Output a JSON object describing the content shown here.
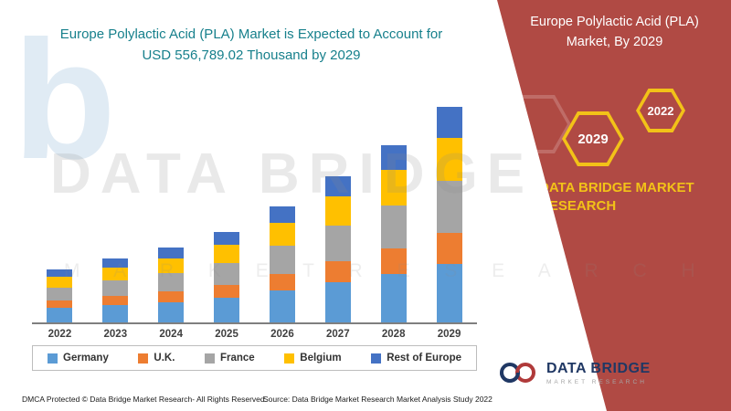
{
  "header": {
    "title_line1": "Europe Polylactic Acid (PLA) Market is Expected to Account for",
    "title_line2": "USD 556,789.02 Thousand by 2029"
  },
  "panel": {
    "title": "Europe Polylactic Acid (PLA) Market, By 2029",
    "hex_small_label": "2022",
    "hex_large_label": "2029",
    "brand_text": "DATA BRIDGE MARKET RESEARCH",
    "bg_color": "#b04a44",
    "accent_yellow": "#f2c218"
  },
  "chart_data": {
    "type": "bar",
    "stacked": true,
    "title": "Europe Polylactic Acid (PLA) Market is Expected to Account for USD 556,789.02 Thousand by 2029",
    "unit": "USD Thousand",
    "categories": [
      "2022",
      "2023",
      "2024",
      "2025",
      "2026",
      "2027",
      "2028",
      "2029"
    ],
    "series": [
      {
        "name": "Germany",
        "color": "#5B9BD5",
        "values": [
          38000,
          45000,
          53000,
          64000,
          82000,
          104000,
          126000,
          152000
        ]
      },
      {
        "name": "U.K.",
        "color": "#ED7D31",
        "values": [
          20000,
          24000,
          28000,
          34000,
          43000,
          55000,
          66000,
          80000
        ]
      },
      {
        "name": "France",
        "color": "#A5A5A5",
        "values": [
          34000,
          40000,
          47000,
          57000,
          73000,
          92000,
          112000,
          134000
        ]
      },
      {
        "name": "Belgium",
        "color": "#FFC000",
        "values": [
          28000,
          33000,
          39000,
          47000,
          60000,
          76000,
          92000,
          110789.02
        ]
      },
      {
        "name": "Rest of Europe",
        "color": "#4472C4",
        "values": [
          20000,
          23000,
          28000,
          33000,
          42000,
          53000,
          64000,
          80000
        ]
      }
    ],
    "ylim": [
      0,
      600000
    ],
    "grid": false,
    "legend_position": "bottom",
    "xlabel": "",
    "ylabel": ""
  },
  "watermark": {
    "letter": "b",
    "line1": "DATA BRIDGE",
    "line2": "M A R K E T   R E S E A R C H"
  },
  "logo": {
    "name": "DATA BRIDGE",
    "tagline": "MARKET RESEARCH"
  },
  "footer": {
    "left": "DMCA Protected © Data Bridge Market Research- All Rights Reserved.",
    "center": "Source: Data Bridge Market Research Market Analysis Study 2022"
  }
}
